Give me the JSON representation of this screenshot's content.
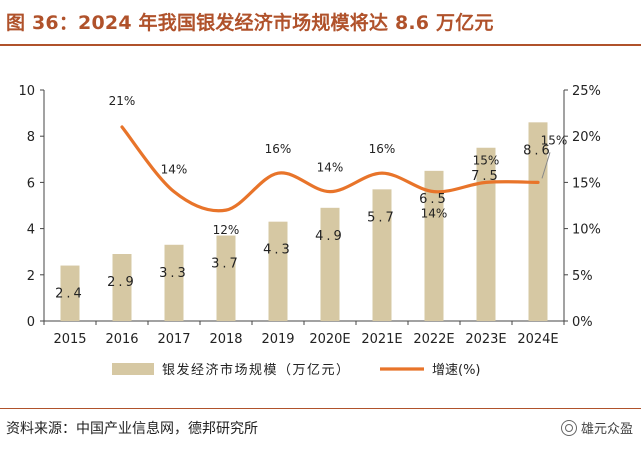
{
  "figure_title": "图 36：2024 年我国银发经济市场规模将达 8.6 万亿元",
  "source": "资料来源：中国产业信息网，德邦研究所",
  "watermark": "雄元众盈",
  "chart_data": {
    "type": "bar+line",
    "categories": [
      "2015",
      "2016",
      "2017",
      "2018",
      "2019",
      "2020E",
      "2021E",
      "2022E",
      "2023E",
      "2024E"
    ],
    "bars": {
      "name": "银发经济市场规模（万亿元）",
      "values": [
        2.4,
        2.9,
        3.3,
        3.7,
        4.3,
        4.9,
        5.7,
        6.5,
        7.5,
        8.6
      ],
      "labels": [
        "2.4",
        "2.9",
        "3.3",
        "3.7",
        "4.3",
        "4.9",
        "5.7",
        "6.5",
        "7.5",
        "8.6"
      ],
      "color": "#d6c8a3"
    },
    "line": {
      "name": "增速(%)",
      "values": [
        null,
        21,
        14,
        12,
        16,
        14,
        16,
        14,
        15,
        15
      ],
      "labels": [
        "",
        "21%",
        "14%",
        "12%",
        "16%",
        "14%",
        "16%",
        "14%",
        "15%",
        "15%"
      ],
      "color": "#e8742a"
    },
    "y_left": {
      "ylim": [
        0,
        10
      ],
      "ticks": [
        "0",
        "2",
        "4",
        "6",
        "8",
        "10"
      ]
    },
    "y_right": {
      "ylim": [
        0,
        25
      ],
      "ticks": [
        "0%",
        "5%",
        "10%",
        "15%",
        "20%",
        "25%"
      ]
    },
    "legend_position": "bottom",
    "grid": false
  }
}
